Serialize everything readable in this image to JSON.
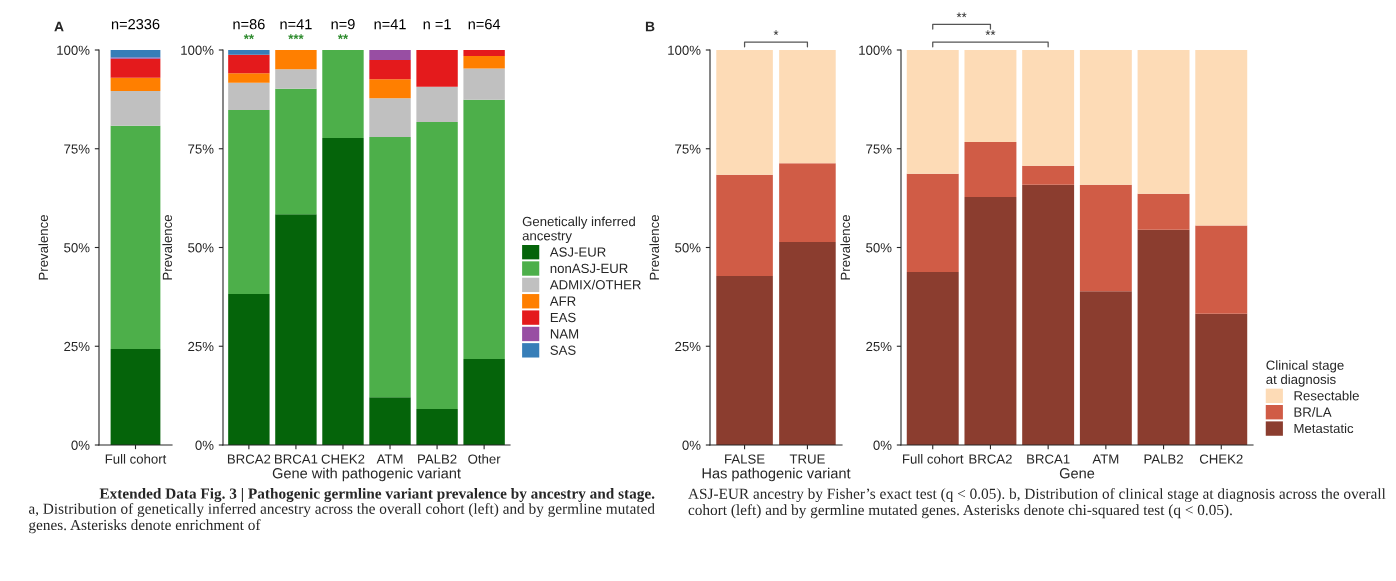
{
  "chart_data": [
    {
      "type": "bar",
      "stacked": true,
      "ylabel": "Prevalence",
      "categories": [
        "Full cohort"
      ],
      "ylim": [
        0,
        100
      ],
      "yticks": [
        {
          "value": 0,
          "label": "0%"
        },
        {
          "value": 25,
          "label": "25%"
        },
        {
          "value": 50,
          "label": "50%"
        },
        {
          "value": 75,
          "label": "75%"
        },
        {
          "value": 100,
          "label": "100%"
        }
      ],
      "series": [
        {
          "color": "#05640a",
          "values": [
            24.3
          ]
        },
        {
          "color": "#4daf4a",
          "values": [
            56.5
          ]
        },
        {
          "color": "#c0c0c0",
          "values": [
            8.8
          ]
        },
        {
          "color": "#ff7f00",
          "values": [
            3.4
          ]
        },
        {
          "color": "#e41a1c",
          "values": [
            4.8
          ]
        },
        {
          "color": "#984ea3",
          "values": [
            0.3
          ]
        },
        {
          "color": "#377eb8",
          "values": [
            1.9
          ]
        }
      ],
      "annotations": [
        "A",
        "Extended Data Fig. 3 | Pathogenic germline variant prevalence by ancestry and stage.",
        "a, Distribution of genetically inferred ancestry across the overall cohort (left) and by germline mutated genes. Asterisks denote enrichment of",
        "n=2336"
      ]
    },
    {
      "type": "bar",
      "stacked": true,
      "ylabel": "Prevalence",
      "xlabel": "Gene with pathogenic variant",
      "legend": "right",
      "legend_title": "Genetically inferred\nancestry",
      "categories": [
        "BRCA2",
        "BRCA1",
        "CHEK2",
        "ATM",
        "PALB2",
        "Other"
      ],
      "ylim": [
        0,
        100
      ],
      "yticks": [
        {
          "value": 0,
          "label": "0%"
        },
        {
          "value": 25,
          "label": "25%"
        },
        {
          "value": 50,
          "label": "50%"
        },
        {
          "value": 75,
          "label": "75%"
        },
        {
          "value": 100,
          "label": "100%"
        }
      ],
      "series": [
        {
          "name": "ASJ-EUR",
          "color": "#05640a",
          "values": [
            38.2,
            58.4,
            77.7,
            12.1,
            9.1,
            21.8
          ]
        },
        {
          "name": "nonASJ-EUR",
          "color": "#4daf4a",
          "values": [
            46.6,
            31.8,
            22.3,
            65.9,
            72.7,
            65.6
          ]
        },
        {
          "name": "ADMIX/OTHER",
          "color": "#c0c0c0",
          "values": [
            6.9,
            4.9,
            0,
            9.8,
            8.9,
            7.9
          ]
        },
        {
          "name": "AFR",
          "color": "#ff7f00",
          "values": [
            2.4,
            4.9,
            0,
            4.8,
            0,
            3.2
          ]
        },
        {
          "name": "EAS",
          "color": "#e41a1c",
          "values": [
            4.7,
            0,
            0,
            4.9,
            9.3,
            1.5
          ]
        },
        {
          "name": "NAM",
          "color": "#984ea3",
          "values": [
            0,
            0,
            0,
            2.5,
            0,
            0
          ]
        },
        {
          "name": "SAS",
          "color": "#377eb8",
          "values": [
            1.2,
            0,
            0,
            0,
            0,
            0
          ]
        }
      ],
      "annotations": [
        "n=86",
        "**",
        "n=41",
        "***",
        "n=9",
        "**",
        "n=41",
        "n =1",
        "n=64"
      ]
    },
    {
      "type": "bar",
      "stacked": true,
      "ylabel": "Prevalence",
      "xlabel": "Has pathogenic variant",
      "categories": [
        "FALSE",
        "TRUE"
      ],
      "ylim": [
        0,
        100
      ],
      "yticks": [
        {
          "value": 0,
          "label": "0%"
        },
        {
          "value": 25,
          "label": "25%"
        },
        {
          "value": 50,
          "label": "50%"
        },
        {
          "value": 75,
          "label": "75%"
        },
        {
          "value": 100,
          "label": "100%"
        }
      ],
      "series": [
        {
          "color": "#8b3d2f",
          "values": [
            42.8,
            51.4
          ]
        },
        {
          "color": "#d05c46",
          "values": [
            25.6,
            19.9
          ]
        },
        {
          "color": "#fddbb6",
          "values": [
            31.6,
            28.7
          ]
        }
      ],
      "annotations": [
        "B",
        "ASJ-EUR ancestry by Fisher’s exact test (q < 0.05). b, Distribution of clinical stage at diagnosis across the overall cohort (left) and by germline mutated genes. Asterisks denote chi-squared test (q < 0.05).",
        "*"
      ]
    },
    {
      "type": "bar",
      "stacked": true,
      "ylabel": "Prevalence",
      "xlabel": "Gene",
      "legend": "bottom right",
      "legend_title": "Clinical stage\nat diagnosis",
      "categories": [
        "Full cohort",
        "BRCA2",
        "BRCA1",
        "ATM",
        "PALB2",
        "CHEK2"
      ],
      "ylim": [
        0,
        100
      ],
      "yticks": [
        {
          "value": 0,
          "label": "0%"
        },
        {
          "value": 25,
          "label": "25%"
        },
        {
          "value": 50,
          "label": "50%"
        },
        {
          "value": 75,
          "label": "75%"
        },
        {
          "value": 100,
          "label": "100%"
        }
      ],
      "series": [
        {
          "name": "Metastatic",
          "color": "#8b3d2f",
          "values": [
            43.8,
            62.8,
            65.9,
            38.9,
            54.5,
            33.2
          ]
        },
        {
          "name": "BR/LA",
          "color": "#d05c46",
          "values": [
            24.9,
            13.9,
            4.8,
            27.0,
            9.1,
            22.4
          ]
        },
        {
          "name": "Resectable",
          "color": "#fddbb6",
          "values": [
            31.3,
            23.3,
            29.3,
            34.1,
            36.4,
            44.4
          ]
        }
      ],
      "annotations": [
        "**",
        "**"
      ]
    }
  ]
}
